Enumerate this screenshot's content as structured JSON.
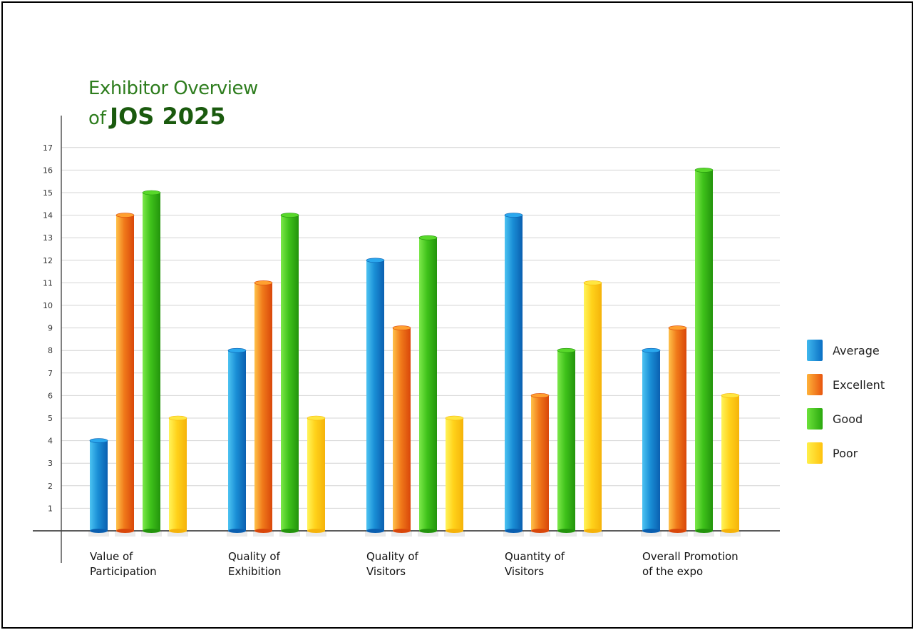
{
  "title": {
    "line1": "Exhibitor Overview",
    "line2_prefix": "of",
    "line2_bold": "JOS 2025"
  },
  "legend": {
    "items": [
      {
        "label": "Average",
        "color": "#1a8fd6"
      },
      {
        "label": "Excellent",
        "color": "#f07a1a"
      },
      {
        "label": "Good",
        "color": "#3fc21a"
      },
      {
        "label": "Poor",
        "color": "#ffd21a"
      }
    ]
  },
  "chart_data": {
    "type": "bar",
    "categories": [
      [
        "Value of",
        "Participation"
      ],
      [
        "Quality of",
        "Exhibition"
      ],
      [
        "Quality of",
        "Visitors"
      ],
      [
        "Quantity of",
        "Visitors"
      ],
      [
        "Overall Promotion",
        "of the expo"
      ]
    ],
    "series": [
      {
        "name": "Average",
        "color": "#1a8fd6",
        "values": [
          4,
          8,
          12,
          14,
          8
        ]
      },
      {
        "name": "Excellent",
        "color": "#f07a1a",
        "values": [
          14,
          11,
          9,
          6,
          9
        ]
      },
      {
        "name": "Good",
        "color": "#3fc21a",
        "values": [
          15,
          14,
          13,
          8,
          16
        ]
      },
      {
        "name": "Poor",
        "color": "#ffd21a",
        "values": [
          5,
          5,
          5,
          11,
          6
        ]
      }
    ],
    "yticks": [
      1,
      2,
      3,
      4,
      5,
      6,
      7,
      8,
      9,
      10,
      11,
      12,
      13,
      14,
      15,
      16,
      17
    ],
    "ylim": [
      0,
      17
    ],
    "grid": true,
    "legend_position": "right"
  }
}
